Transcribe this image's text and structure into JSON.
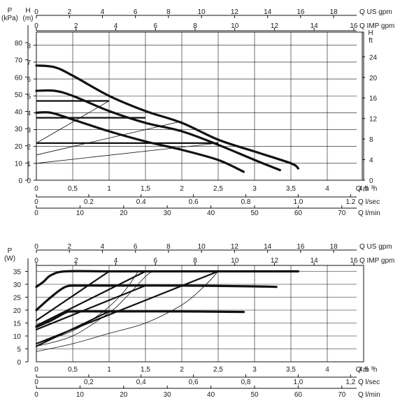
{
  "chart_data": [
    {
      "type": "line",
      "scales": {
        "us_gpm": {
          "label": "Q US gpm",
          "ticks": [
            "0",
            "2",
            "4",
            "6",
            "8",
            "10",
            "12",
            "14",
            "16",
            "18"
          ]
        },
        "imp_gpm": {
          "label": "Q IMP gpm",
          "ticks": [
            "0",
            "2",
            "4",
            "6",
            "8",
            "10",
            "12",
            "14",
            "16"
          ]
        },
        "m3h": {
          "label": "Q m ³h",
          "ticks": [
            "0",
            "0,5",
            "1",
            "1,5",
            "2",
            "2,5",
            "3",
            "3,5",
            "4",
            "4,5"
          ]
        },
        "lsec": {
          "label": "Q l/sec",
          "ticks": [
            "0",
            "0.2",
            "0.4",
            "0.6",
            "0.8",
            "1.0",
            "1.2"
          ]
        },
        "lmin": {
          "label": "Q l/min",
          "ticks": [
            "0",
            "10",
            "20",
            "30",
            "40",
            "50",
            "60",
            "70"
          ]
        },
        "kpa": {
          "label": "P\n(kPa)",
          "ticks": [
            "0",
            "10",
            "20",
            "30",
            "40",
            "50",
            "60",
            "70",
            "80"
          ]
        },
        "head_m": {
          "label": "H\n(m)",
          "ticks": [
            "0",
            "1",
            "2",
            "3",
            "4",
            "5",
            "6",
            "7",
            "8"
          ]
        },
        "head_ft": {
          "label": "H\nft",
          "ticks": [
            "0",
            "4",
            "8",
            "12",
            "16",
            "20",
            "24"
          ]
        }
      },
      "x_unit": "m3/h",
      "xlim": [
        0,
        4.5
      ],
      "ylim": [
        0,
        8.7
      ],
      "series": [
        {
          "values": [
            [
              0,
              6.8
            ],
            [
              0.25,
              6.7
            ],
            [
              0.5,
              6.2
            ],
            [
              1,
              5.0
            ],
            [
              1.5,
              4.1
            ],
            [
              2,
              3.4
            ],
            [
              2.5,
              2.4
            ],
            [
              3,
              1.7
            ],
            [
              3.5,
              1.0
            ],
            [
              3.6,
              0.7
            ]
          ]
        },
        {
          "values": [
            [
              0,
              5.3
            ],
            [
              0.25,
              5.3
            ],
            [
              0.5,
              5.0
            ],
            [
              1,
              4.1
            ],
            [
              1.5,
              3.4
            ],
            [
              2,
              2.9
            ],
            [
              2.5,
              2.1
            ],
            [
              3,
              1.2
            ],
            [
              3.35,
              0.6
            ]
          ]
        },
        {
          "values": [
            [
              0,
              4.0
            ],
            [
              0.2,
              4.0
            ],
            [
              0.5,
              3.6
            ],
            [
              1,
              2.9
            ],
            [
              1.5,
              2.3
            ],
            [
              2,
              1.8
            ],
            [
              2.5,
              1.2
            ],
            [
              2.85,
              0.5
            ]
          ]
        }
      ],
      "setpoint_lines": [
        {
          "y": 4.7,
          "x_end": 1.0
        },
        {
          "y": 3.7,
          "x_end": 1.5
        },
        {
          "y": 2.2,
          "x_end": 2.5
        }
      ],
      "system_curves": [
        {
          "values": [
            [
              0,
              2.2
            ],
            [
              1,
              4.7
            ]
          ]
        },
        {
          "values": [
            [
              0,
              1.5
            ],
            [
              2,
              3.5
            ]
          ]
        },
        {
          "values": [
            [
              0,
              1.0
            ],
            [
              2.5,
              2.2
            ]
          ]
        }
      ],
      "grid": true
    },
    {
      "type": "line",
      "scales": {
        "us_gpm": {
          "label": "Q US gpm",
          "ticks": [
            "0",
            "2",
            "4",
            "6",
            "8",
            "10",
            "12",
            "14",
            "16",
            "18"
          ]
        },
        "imp_gpm": {
          "label": "Q IMP gpm",
          "ticks": [
            "0",
            "2",
            "4",
            "6",
            "8",
            "10",
            "12",
            "14",
            "16"
          ]
        },
        "m3h": {
          "label": "Q m ³h",
          "ticks": [
            "0",
            "0,5",
            "1",
            "1,5",
            "2",
            "2,5",
            "3",
            "3,5",
            "4",
            "4,5"
          ]
        },
        "lsec": {
          "label": "Q l/sec",
          "ticks": [
            "0",
            "0,2",
            "0,4",
            "0,6",
            "0,8",
            "1,0",
            "1,2"
          ]
        },
        "lmin": {
          "label": "Q l/min",
          "ticks": [
            "0",
            "10",
            "20",
            "30",
            "40",
            "50",
            "60",
            "70"
          ]
        },
        "power": {
          "label": "P\n(W)",
          "ticks": [
            "0",
            "5",
            "10",
            "15",
            "20",
            "25",
            "30",
            "35"
          ]
        }
      },
      "x_unit": "m3/h",
      "xlim": [
        0,
        4.5
      ],
      "ylim": [
        0,
        38
      ],
      "series": [
        {
          "values": [
            [
              0,
              29
            ],
            [
              0.1,
              31
            ],
            [
              0.2,
              33.5
            ],
            [
              0.4,
              35
            ],
            [
              1,
              35
            ],
            [
              2,
              35
            ],
            [
              3,
              35
            ],
            [
              3.6,
              35
            ]
          ]
        },
        {
          "values": [
            [
              0,
              20
            ],
            [
              0.2,
              25
            ],
            [
              0.4,
              29
            ],
            [
              0.6,
              29.5
            ],
            [
              1,
              29.5
            ],
            [
              2,
              29.5
            ],
            [
              3,
              29.2
            ],
            [
              3.3,
              29
            ]
          ]
        },
        {
          "values": [
            [
              0,
              13.5
            ],
            [
              0.2,
              16
            ],
            [
              0.4,
              19
            ],
            [
              0.5,
              19.5
            ],
            [
              1,
              19.5
            ],
            [
              2,
              19.5
            ],
            [
              2.85,
              19.3
            ]
          ]
        }
      ],
      "control_lines": [
        {
          "values": [
            [
              0,
              16
            ],
            [
              1.0,
              35
            ]
          ]
        },
        {
          "values": [
            [
              0,
              14
            ],
            [
              1.5,
              35
            ]
          ]
        },
        {
          "values": [
            [
              0,
              12.5
            ],
            [
              1.5,
              29.5
            ]
          ]
        },
        {
          "values": [
            [
              0,
              7
            ],
            [
              2.5,
              35
            ]
          ]
        },
        {
          "values": [
            [
              0,
              6
            ],
            [
              1.0,
              19.5
            ]
          ]
        }
      ],
      "thin_curves": [
        {
          "values": [
            [
              0,
              6
            ],
            [
              0.5,
              10
            ],
            [
              1,
              19
            ],
            [
              1.2,
              24
            ],
            [
              1.5,
              33
            ],
            [
              1.6,
              35
            ]
          ]
        },
        {
          "values": [
            [
              0,
              4
            ],
            [
              0.5,
              7
            ],
            [
              1,
              11
            ],
            [
              1.5,
              15
            ],
            [
              2,
              22
            ],
            [
              2.3,
              29
            ],
            [
              2.5,
              35
            ]
          ]
        },
        {
          "values": [
            [
              0,
              7
            ],
            [
              0.5,
              12
            ],
            [
              0.9,
              19
            ],
            [
              1.2,
              27
            ],
            [
              1.4,
              35
            ]
          ]
        }
      ],
      "grid": true
    }
  ]
}
